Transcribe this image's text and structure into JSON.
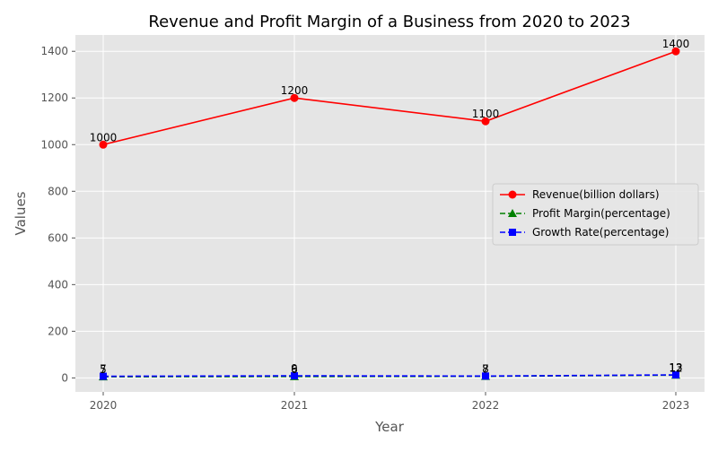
{
  "chart_data": {
    "type": "line",
    "title": "Revenue and Profit Margin of a Business from 2020 to 2023",
    "xlabel": "Year",
    "ylabel": "Values",
    "categories": [
      "2020",
      "2021",
      "2022",
      "2023"
    ],
    "ylim": [
      -60,
      1470
    ],
    "yticks": [
      0,
      200,
      400,
      600,
      800,
      1000,
      1200,
      1400
    ],
    "grid": true,
    "legend_position": "center-right",
    "series": [
      {
        "name": "Revenue(billion dollars)",
        "values": [
          1000,
          1200,
          1100,
          1400
        ],
        "color": "#ff0000",
        "line_style": "solid",
        "marker": "circle"
      },
      {
        "name": "Profit Margin(percentage)",
        "values": [
          5,
          6,
          7,
          12
        ],
        "color": "#008000",
        "line_style": "dashed",
        "marker": "triangle"
      },
      {
        "name": "Growth Rate(percentage)",
        "values": [
          7,
          9,
          8,
          13
        ],
        "color": "#0000ff",
        "line_style": "dashed",
        "marker": "square"
      }
    ]
  }
}
